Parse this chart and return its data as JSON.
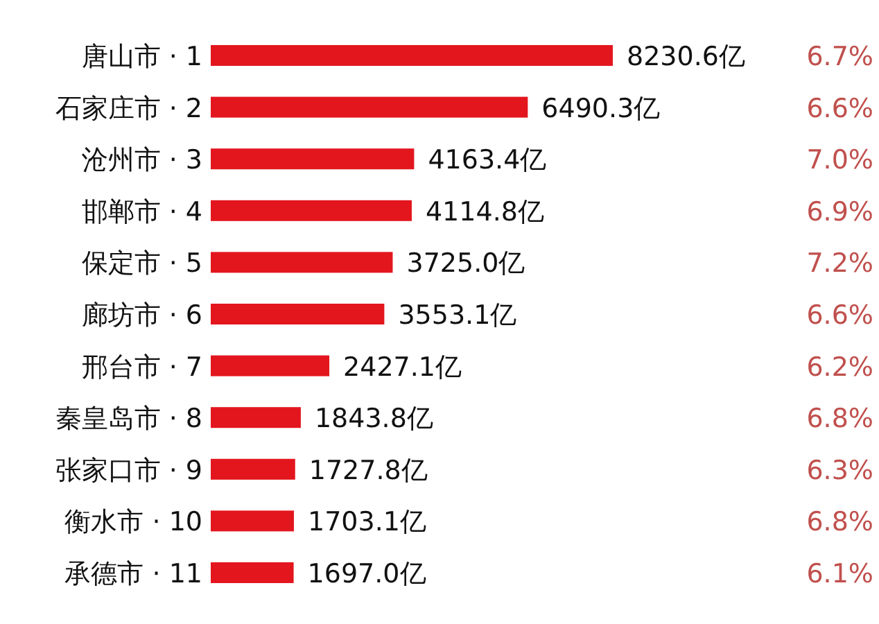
{
  "chart_data": {
    "type": "bar",
    "orientation": "horizontal",
    "color": "#e3161e",
    "categories": [
      "唐山市 · 1",
      "石家庄市 · 2",
      "沧州市 · 3",
      "邯郸市 · 4",
      "保定市 · 5",
      "廊坊市 · 6",
      "邢台市 · 7",
      "秦皇岛市 · 8",
      "张家口市 · 9",
      "衡水市 · 10",
      "承德市 · 11"
    ],
    "values": [
      8230.6,
      6490.3,
      4163.4,
      4114.8,
      3725.0,
      3553.1,
      2427.1,
      1843.8,
      1727.8,
      1703.1,
      1697.0
    ],
    "value_labels": [
      "8230.6亿",
      "6490.3亿",
      "4163.4亿",
      "4114.8亿",
      "3725.0亿",
      "3553.1亿",
      "2427.1亿",
      "1843.8亿",
      "1727.8亿",
      "1703.1亿",
      "1697.0亿"
    ],
    "annotations": [
      "6.7%",
      "6.6%",
      "7.0%",
      "6.9%",
      "7.2%",
      "6.6%",
      "6.2%",
      "6.8%",
      "6.3%",
      "6.8%",
      "6.1%"
    ]
  }
}
